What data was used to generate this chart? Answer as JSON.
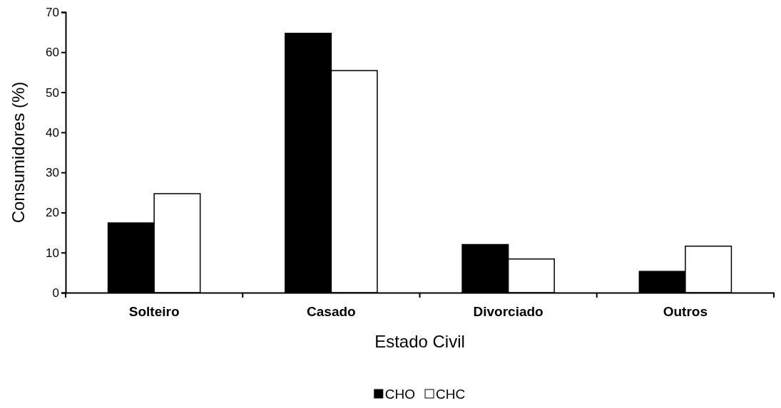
{
  "chart_data": {
    "type": "bar",
    "xlabel": "Estado Civil",
    "ylabel": "Consumidores (%)",
    "categories": [
      "Solteiro",
      "Casado",
      "Divorciado",
      "Outros"
    ],
    "series": [
      {
        "name": "CHO",
        "color": "#000000",
        "values": [
          17.4,
          64.7,
          12.0,
          5.3
        ]
      },
      {
        "name": "CHC",
        "color": "#ffffff",
        "values": [
          24.7,
          55.4,
          8.4,
          11.6
        ]
      }
    ],
    "ylim": [
      0,
      70
    ],
    "yticks": [
      0,
      10,
      20,
      30,
      40,
      50,
      60,
      70
    ],
    "grid": false,
    "legend": "bottom"
  }
}
